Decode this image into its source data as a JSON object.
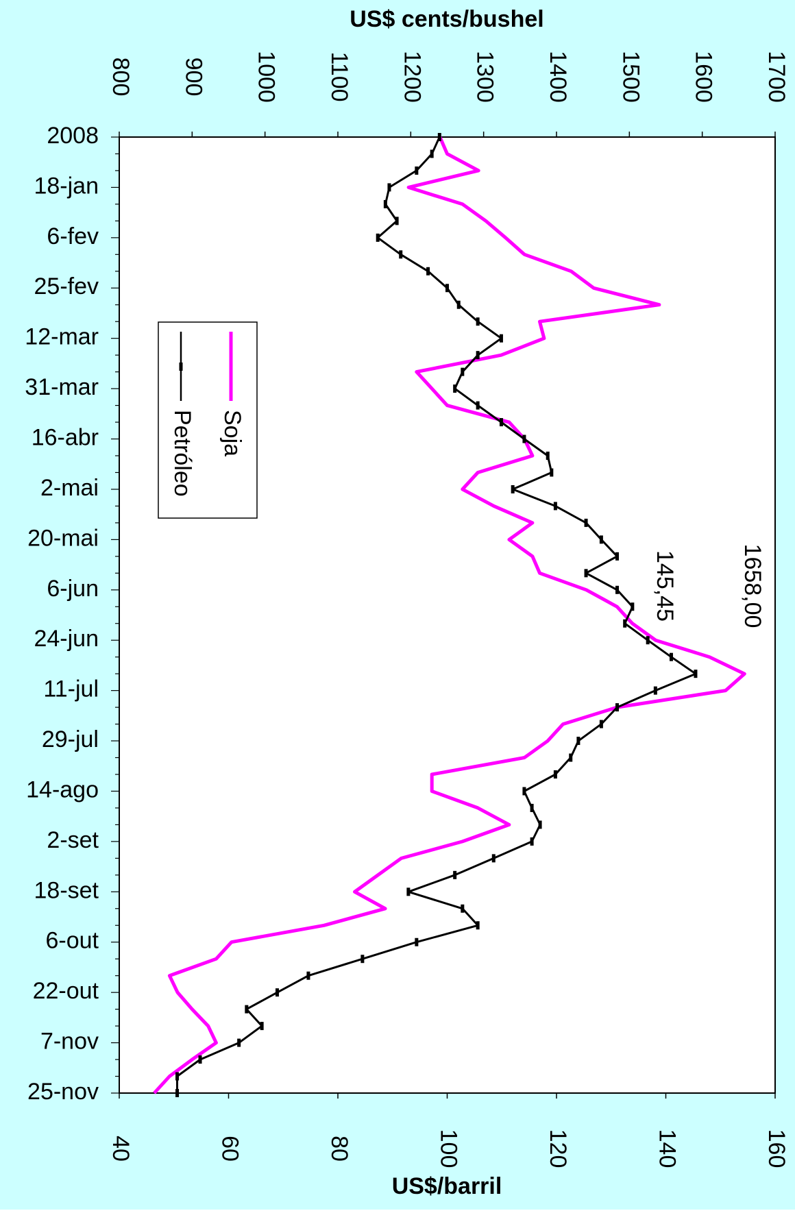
{
  "chart_data": {
    "type": "line",
    "orientation": "rotated",
    "y_label": "US$ cents/bushel",
    "y2_label": "US$/barril",
    "categories": [
      "2008",
      null,
      null,
      "18-jan",
      null,
      null,
      "6-fev",
      null,
      null,
      "25-fev",
      null,
      null,
      "12-mar",
      null,
      null,
      "31-mar",
      null,
      null,
      "16-abr",
      null,
      null,
      "2-mai",
      null,
      null,
      "20-mai",
      null,
      null,
      "6-jun",
      null,
      null,
      "24-jun",
      null,
      null,
      "11-jul",
      null,
      null,
      "29-jul",
      null,
      null,
      "14-ago",
      null,
      null,
      "2-set",
      null,
      null,
      "18-set",
      null,
      null,
      "6-out",
      null,
      null,
      "22-out",
      null,
      null,
      "7-nov",
      null,
      null,
      "25-nov"
    ],
    "ylim": [
      800,
      1700
    ],
    "yticks": [
      800,
      900,
      1000,
      1100,
      1200,
      1300,
      1400,
      1500,
      1600,
      1700
    ],
    "y2lim": [
      40,
      160
    ],
    "y2ticks": [
      40,
      60,
      80,
      100,
      120,
      140,
      160
    ],
    "series": [
      {
        "name": "Soja",
        "color": "#ff00ff",
        "values": [
          1240,
          1250,
          1293,
          1197,
          1271,
          1303,
          1330,
          1356,
          1420,
          1451,
          1541,
          1377,
          1383,
          1324,
          1208,
          1229,
          1250,
          1335,
          1356,
          1367,
          1292,
          1271,
          1314,
          1367,
          1335,
          1367,
          1377,
          1441,
          1483,
          1504,
          1536,
          1610,
          1658,
          1632,
          1483,
          1409,
          1388,
          1356,
          1229,
          1229,
          1292,
          1335,
          1271,
          1187,
          1155,
          1123,
          1165,
          1081,
          954,
          933,
          869,
          880,
          900,
          922,
          933,
          900,
          869,
          848
        ]
      },
      {
        "name": "Petróleo",
        "color": "#000000",
        "axis": "y2",
        "values": [
          98.6,
          97.2,
          94.4,
          89.4,
          88.7,
          90.8,
          87.3,
          91.5,
          96.5,
          100.0,
          102.1,
          105.6,
          109.9,
          105.6,
          102.8,
          101.4,
          105.6,
          109.9,
          114.1,
          118.4,
          119.1,
          112.0,
          119.8,
          125.4,
          128.2,
          131.1,
          125.4,
          131.1,
          133.9,
          132.5,
          136.7,
          141.0,
          145.45,
          138.1,
          131.1,
          128.2,
          124.0,
          122.6,
          119.8,
          114.1,
          115.5,
          117.0,
          115.5,
          108.5,
          101.4,
          92.9,
          102.8,
          105.6,
          94.4,
          84.5,
          74.6,
          68.9,
          63.3,
          66.1,
          61.9,
          54.8,
          50.6,
          50.6
        ]
      }
    ],
    "annotations": [
      "1658,00",
      "145,45"
    ],
    "legend": "left"
  }
}
